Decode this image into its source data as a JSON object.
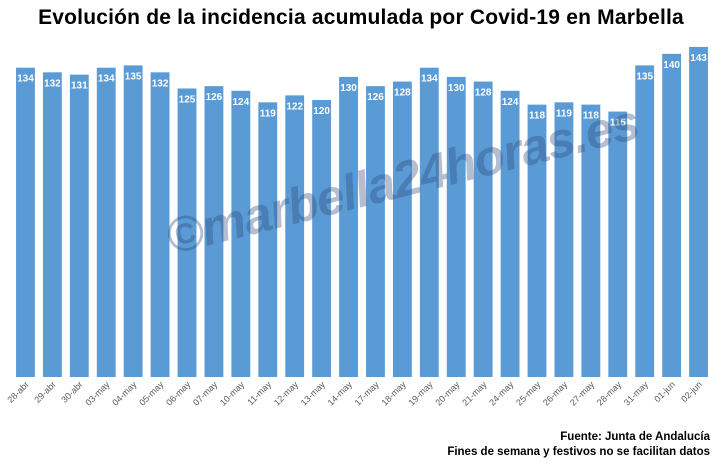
{
  "chart_data": {
    "type": "bar",
    "title": "Evolución de la incidencia acumulada por Covid-19 en Marbella",
    "categories": [
      "28-abr",
      "29-abr",
      "30-abr",
      "03-may",
      "04-may",
      "05-may",
      "06-may",
      "07-may",
      "10-may",
      "11-may",
      "12-may",
      "13-may",
      "14-may",
      "17-may",
      "18-may",
      "19-may",
      "20-may",
      "21-may",
      "24-may",
      "25-may",
      "26-may",
      "27-may",
      "28-may",
      "31-may",
      "01-jun",
      "02-jun"
    ],
    "values": [
      134,
      132,
      131,
      134,
      135,
      132,
      125,
      126,
      124,
      119,
      122,
      120,
      130,
      126,
      128,
      134,
      130,
      128,
      124,
      118,
      119,
      118,
      115,
      135,
      140,
      143
    ],
    "xlabel": "",
    "ylabel": "",
    "ylim": [
      0,
      146
    ],
    "grid": false,
    "legend": "none",
    "bar_color": "#5b9bd5"
  },
  "footer": {
    "source": "Fuente: Junta de Andalucía",
    "note": "Fines de semana y festivos no se facilitan datos"
  },
  "watermark": "©marbella24horas.es"
}
